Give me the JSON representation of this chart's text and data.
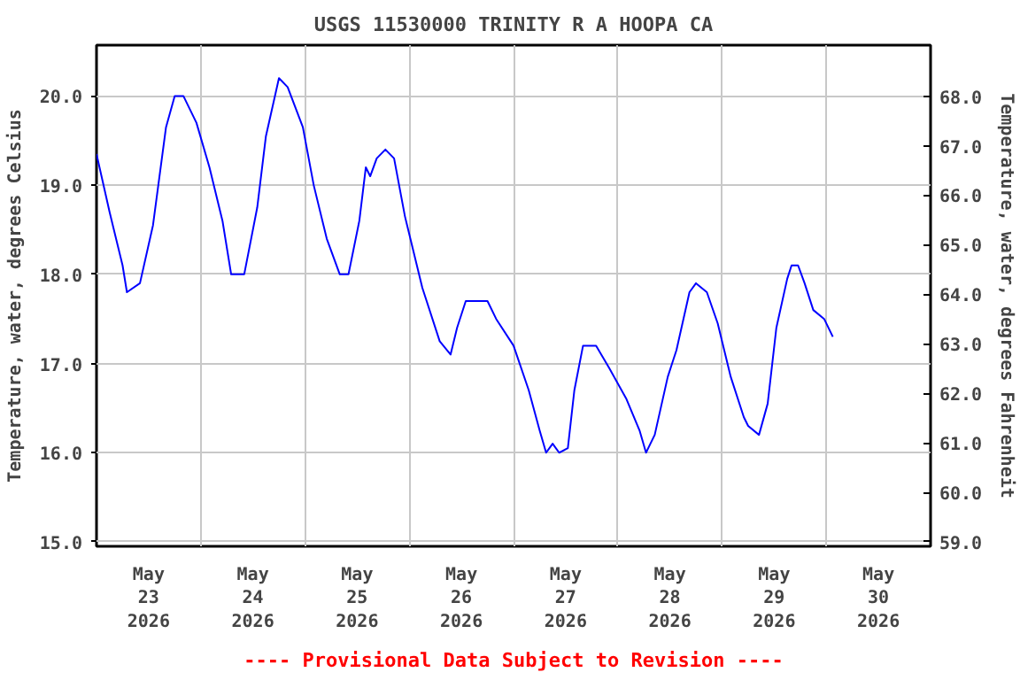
{
  "chart_data": {
    "type": "line",
    "title": "USGS 11530000 TRINITY R A HOOPA CA",
    "ylabel": "Temperature, water, degrees Celsius",
    "y2label": "Temperature, water, degrees Fahrenheit",
    "annotations": [
      "---- Provisional Data Subject to Revision ----"
    ],
    "x": [
      "2026-05-23T00:00",
      "2026-05-23T03:00",
      "2026-05-23T06:00",
      "2026-05-23T07:00",
      "2026-05-23T10:00",
      "2026-05-23T13:00",
      "2026-05-23T16:00",
      "2026-05-23T18:00",
      "2026-05-23T20:00",
      "2026-05-23T23:00",
      "2026-05-24T02:00",
      "2026-05-24T05:00",
      "2026-05-24T07:00",
      "2026-05-24T10:00",
      "2026-05-24T13:00",
      "2026-05-24T15:00",
      "2026-05-24T18:00",
      "2026-05-24T20:00",
      "2026-05-24T23:30",
      "2026-05-25T02:00",
      "2026-05-25T05:00",
      "2026-05-25T08:00",
      "2026-05-25T10:00",
      "2026-05-25T12:30",
      "2026-05-25T14:00",
      "2026-05-25T15:00",
      "2026-05-25T16:30",
      "2026-05-25T18:30",
      "2026-05-25T20:30",
      "2026-05-25T23:00",
      "2026-05-26T03:00",
      "2026-05-26T07:00",
      "2026-05-26T09:30",
      "2026-05-26T11:00",
      "2026-05-26T13:00",
      "2026-05-26T16:00",
      "2026-05-26T18:00",
      "2026-05-26T20:00",
      "2026-05-27T00:00",
      "2026-05-27T03:30",
      "2026-05-27T06:00",
      "2026-05-27T07:30",
      "2026-05-27T09:00",
      "2026-05-27T10:30",
      "2026-05-27T12:30",
      "2026-05-27T14:00",
      "2026-05-27T16:00",
      "2026-05-27T19:00",
      "2026-05-27T22:00",
      "2026-05-28T02:00",
      "2026-05-28T05:00",
      "2026-05-28T06:30",
      "2026-05-28T08:30",
      "2026-05-28T11:30",
      "2026-05-28T13:30",
      "2026-05-28T16:30",
      "2026-05-28T18:00",
      "2026-05-28T20:30",
      "2026-05-28T23:00",
      "2026-05-29T02:00",
      "2026-05-29T05:00",
      "2026-05-29T06:00",
      "2026-05-29T08:30",
      "2026-05-29T10:30",
      "2026-05-29T12:30",
      "2026-05-29T15:00",
      "2026-05-29T16:00",
      "2026-05-29T17:30",
      "2026-05-29T19:00",
      "2026-05-29T21:00",
      "2026-05-29T23:30",
      "2026-05-30T01:30"
    ],
    "series": [
      {
        "color": "#0000ff",
        "values": [
          19.35,
          18.7,
          18.1,
          17.8,
          17.9,
          18.55,
          19.65,
          20.0,
          20.0,
          19.7,
          19.2,
          18.6,
          18.0,
          18.0,
          18.75,
          19.55,
          20.2,
          20.1,
          19.65,
          19.0,
          18.4,
          18.0,
          18.0,
          18.6,
          19.2,
          19.1,
          19.3,
          19.4,
          19.3,
          18.65,
          17.85,
          17.25,
          17.1,
          17.4,
          17.7,
          17.7,
          17.7,
          17.5,
          17.2,
          16.7,
          16.25,
          16.0,
          16.1,
          16.0,
          16.05,
          16.7,
          17.2,
          17.2,
          16.95,
          16.6,
          16.25,
          16.0,
          16.2,
          16.85,
          17.15,
          17.8,
          17.9,
          17.8,
          17.45,
          16.85,
          16.4,
          16.3,
          16.2,
          16.55,
          17.4,
          17.95,
          18.1,
          18.1,
          17.9,
          17.6,
          17.5,
          17.3
        ]
      }
    ],
    "xlim": [
      "2026-05-23T00:00",
      "2026-05-31T00:00"
    ],
    "xticks": [
      {
        "value": "2026-05-23T12:00",
        "label": "May\n23\n2026"
      },
      {
        "value": "2026-05-24T00:00",
        "label": null
      },
      {
        "value": "2026-05-24T12:00",
        "label": "May\n24\n2026"
      },
      {
        "value": "2026-05-25T00:00",
        "label": null
      },
      {
        "value": "2026-05-25T12:00",
        "label": "May\n25\n2026"
      },
      {
        "value": "2026-05-26T00:00",
        "label": null
      },
      {
        "value": "2026-05-26T12:00",
        "label": "May\n26\n2026"
      },
      {
        "value": "2026-05-27T00:00",
        "label": null
      },
      {
        "value": "2026-05-27T12:00",
        "label": "May\n27\n2026"
      },
      {
        "value": "2026-05-28T00:00",
        "label": null
      },
      {
        "value": "2026-05-28T12:00",
        "label": "May\n28\n2026"
      },
      {
        "value": "2026-05-29T00:00",
        "label": null
      },
      {
        "value": "2026-05-29T12:00",
        "label": "May\n29\n2026"
      },
      {
        "value": "2026-05-30T00:00",
        "label": null
      },
      {
        "value": "2026-05-30T12:00",
        "label": "May\n30\n2026"
      }
    ],
    "ylim": [
      14.95,
      20.57
    ],
    "yticks": [
      {
        "value": 15,
        "label": "15.0"
      },
      {
        "value": 16,
        "label": "16.0"
      },
      {
        "value": 17,
        "label": "17.0"
      },
      {
        "value": 18,
        "label": "18.0"
      },
      {
        "value": 19,
        "label": "19.0"
      },
      {
        "value": 20,
        "label": "20.0"
      }
    ],
    "y2lim": [
      58.91,
      69.03
    ],
    "y2ticks": [
      {
        "value": 59,
        "label": "59.0"
      },
      {
        "value": 60,
        "label": "60.0"
      },
      {
        "value": 61,
        "label": "61.0"
      },
      {
        "value": 62,
        "label": "62.0"
      },
      {
        "value": 63,
        "label": "63.0"
      },
      {
        "value": 64,
        "label": "64.0"
      },
      {
        "value": 65,
        "label": "65.0"
      },
      {
        "value": 66,
        "label": "66.0"
      },
      {
        "value": 67,
        "label": "67.0"
      },
      {
        "value": 68,
        "label": "68.0"
      }
    ],
    "grid": true,
    "line_style": "solid",
    "marker": "none"
  }
}
